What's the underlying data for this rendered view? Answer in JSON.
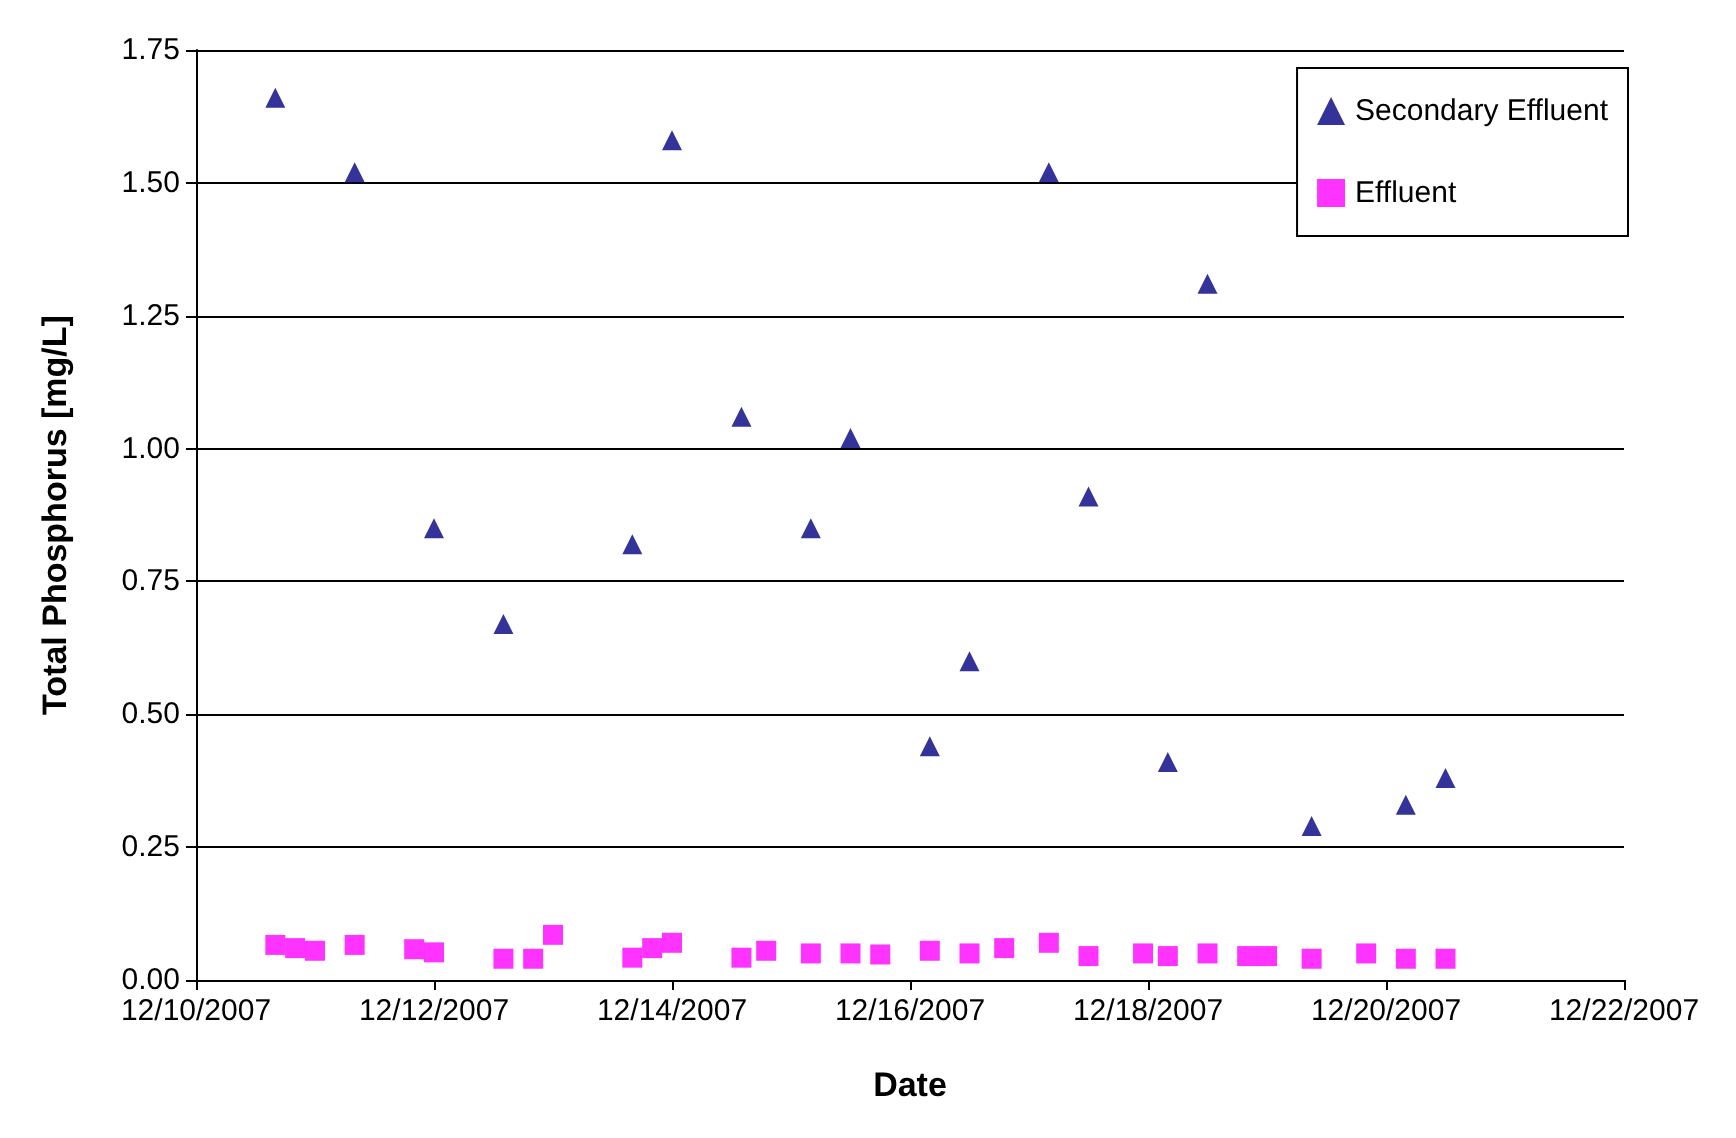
{
  "chart_data": {
    "type": "scatter",
    "xlabel": "Date",
    "ylabel": "Total Phosphorus [mg/L]",
    "xlim": [
      "2007-12-10",
      "2007-12-22"
    ],
    "xticks": [
      {
        "value": "2007-12-10",
        "label": "12/10/2007"
      },
      {
        "value": "2007-12-12",
        "label": "12/12/2007"
      },
      {
        "value": "2007-12-14",
        "label": "12/14/2007"
      },
      {
        "value": "2007-12-16",
        "label": "12/16/2007"
      },
      {
        "value": "2007-12-18",
        "label": "12/18/2007"
      },
      {
        "value": "2007-12-20",
        "label": "12/20/2007"
      },
      {
        "value": "2007-12-22",
        "label": "12/22/2007"
      }
    ],
    "ylim": [
      0,
      1.75
    ],
    "yticks": [
      {
        "value": 0,
        "label": "0.00"
      },
      {
        "value": 0.25,
        "label": "0.25"
      },
      {
        "value": 0.5,
        "label": "0.50"
      },
      {
        "value": 0.75,
        "label": "0.75"
      },
      {
        "value": 1,
        "label": "1.00"
      },
      {
        "value": 1.25,
        "label": "1.25"
      },
      {
        "value": 1.5,
        "label": "1.50"
      },
      {
        "value": 1.75,
        "label": "1.75"
      }
    ],
    "grid": "y",
    "legend": "top right",
    "series": [
      {
        "name": "Secondary Effluent",
        "color": "#000080",
        "marker": "triangle",
        "x": [
          "2007-12-10T16:00",
          "2007-12-11T08:00",
          "2007-12-12T00:00",
          "2007-12-12T14:00",
          "2007-12-13T16:00",
          "2007-12-14T00:00",
          "2007-12-14T14:00",
          "2007-12-15T04:00",
          "2007-12-15T12:00",
          "2007-12-16T04:00",
          "2007-12-16T12:00",
          "2007-12-17T04:00",
          "2007-12-17T12:00",
          "2007-12-18T04:00",
          "2007-12-18T12:00",
          "2007-12-19T09:00",
          "2007-12-20T04:00",
          "2007-12-20T12:00"
        ],
        "values": [
          1.66,
          1.52,
          0.85,
          0.67,
          0.82,
          1.58,
          1.06,
          0.85,
          1.02,
          0.44,
          0.6,
          1.52,
          0.91,
          0.41,
          1.31,
          0.29,
          0.33,
          0.38
        ]
      },
      {
        "name": "Effluent",
        "color": "#ff00ff",
        "marker": "square",
        "x": [
          "2007-12-10T16:00",
          "2007-12-10T20:00",
          "2007-12-11T00:00",
          "2007-12-11T08:00",
          "2007-12-11T20:00",
          "2007-12-12T00:00",
          "2007-12-12T14:00",
          "2007-12-12T20:00",
          "2007-12-13T00:00",
          "2007-12-13T16:00",
          "2007-12-13T20:00",
          "2007-12-14T00:00",
          "2007-12-14T14:00",
          "2007-12-14T19:00",
          "2007-12-15T04:00",
          "2007-12-15T12:00",
          "2007-12-15T18:00",
          "2007-12-16T04:00",
          "2007-12-16T12:00",
          "2007-12-16T19:00",
          "2007-12-17T04:00",
          "2007-12-17T12:00",
          "2007-12-17T23:00",
          "2007-12-18T04:00",
          "2007-12-18T12:00",
          "2007-12-18T20:00",
          "2007-12-19T00:00",
          "2007-12-19T09:00",
          "2007-12-19T20:00",
          "2007-12-20T04:00",
          "2007-12-20T12:00"
        ],
        "values": [
          0.066,
          0.06,
          0.055,
          0.066,
          0.058,
          0.052,
          0.04,
          0.04,
          0.085,
          0.042,
          0.06,
          0.07,
          0.042,
          0.055,
          0.05,
          0.05,
          0.048,
          0.055,
          0.05,
          0.06,
          0.07,
          0.045,
          0.05,
          0.045,
          0.05,
          0.045,
          0.045,
          0.04,
          0.05,
          0.04,
          0.04
        ]
      }
    ]
  }
}
